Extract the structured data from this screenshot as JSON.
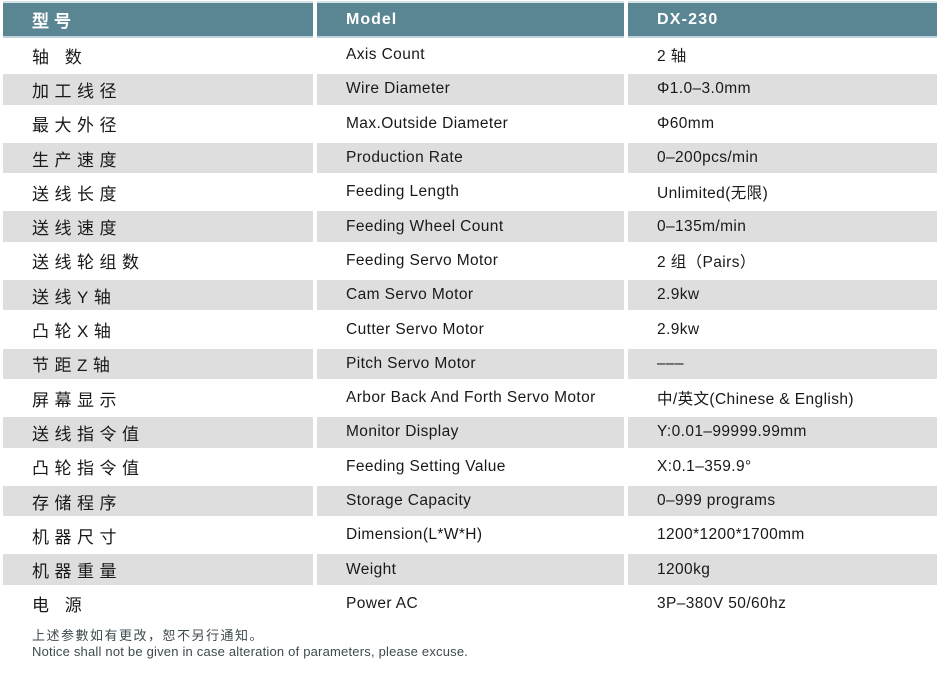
{
  "header": {
    "cn": "型号",
    "en": "Model",
    "model": "DX-230"
  },
  "table": {
    "rows": [
      {
        "cn": "轴 数",
        "en": "Axis Count",
        "value": "2 轴"
      },
      {
        "cn": "加工线径",
        "en": "Wire Diameter",
        "value": "Φ1.0–3.0mm"
      },
      {
        "cn": "最大外径",
        "en": "Max.Outside Diameter",
        "value": "Φ60mm"
      },
      {
        "cn": "生产速度",
        "en": "Production Rate",
        "value": "0–200pcs/min"
      },
      {
        "cn": "送线长度",
        "en": "Feeding Length",
        "value": "Unlimited(无限)"
      },
      {
        "cn": "送线速度",
        "en": "Feeding Wheel Count",
        "value": "0–135m/min"
      },
      {
        "cn": "送线轮组数",
        "en": "Feeding Servo Motor",
        "value": "2 组（Pairs）"
      },
      {
        "cn": "送线Y轴",
        "en": "Cam Servo Motor",
        "value": "2.9kw"
      },
      {
        "cn": "凸轮X轴",
        "en": "Cutter Servo Motor",
        "value": "2.9kw"
      },
      {
        "cn": "节距Z轴",
        "en": "Pitch Servo Motor",
        "value": "–––"
      },
      {
        "cn": "屏幕显示",
        "en": "Arbor Back And Forth Servo Motor",
        "value": "中/英文(Chinese & English)"
      },
      {
        "cn": "送线指令值",
        "en": "Monitor Display",
        "value": "Y:0.01–99999.99mm"
      },
      {
        "cn": "凸轮指令值",
        "en": "Feeding Setting Value",
        "value": "X:0.1–359.9°"
      },
      {
        "cn": "存储程序",
        "en": "Storage Capacity",
        "value": "0–999 programs"
      },
      {
        "cn": "机器尺寸",
        "en": "Dimension(L*W*H)",
        "value": "1200*1200*1700mm"
      },
      {
        "cn": "机器重量",
        "en": "Weight",
        "value": "1200kg"
      },
      {
        "cn": "电 源",
        "en": "Power AC",
        "value": "3P–380V 50/60hz"
      }
    ]
  },
  "footer": {
    "note_cn": "上述参數如有更改，恕不另行通知。",
    "note_en": "Notice shall not be given in case alteration of parameters, please excuse."
  },
  "colors": {
    "header_bg": "#5a8593",
    "header_text": "#ffffff",
    "row_alt_bg": "#dedede",
    "row_bg": "#ffffff",
    "body_text": "#191919",
    "footer_text": "#3d4a50"
  }
}
